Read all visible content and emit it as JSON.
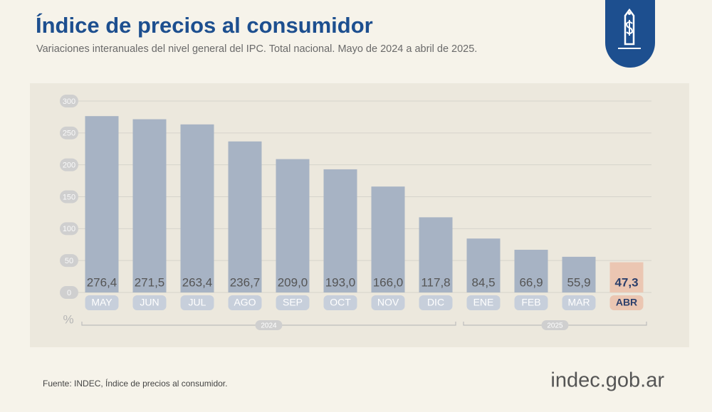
{
  "chart_data": {
    "type": "bar",
    "title": "Índice de precios al consumidor",
    "subtitle": "Variaciones interanuales del nivel general del IPC. Total nacional. Mayo de 2024 a abril de 2025.",
    "categories": [
      "MAY",
      "JUN",
      "JUL",
      "AGO",
      "SEP",
      "OCT",
      "NOV",
      "DIC",
      "ENE",
      "FEB",
      "MAR",
      "ABR"
    ],
    "values": [
      276.4,
      271.5,
      263.4,
      236.7,
      209.0,
      193.0,
      166.0,
      117.8,
      84.5,
      66.9,
      55.9,
      47.3
    ],
    "value_labels": [
      "276,4",
      "271,5",
      "263,4",
      "236,7",
      "209,0",
      "193,0",
      "166,0",
      "117,8",
      "84,5",
      "66,9",
      "55,9",
      "47,3"
    ],
    "colors": [
      "#a7b3c4",
      "#a7b3c4",
      "#a7b3c4",
      "#a7b3c4",
      "#a7b3c4",
      "#a7b3c4",
      "#a7b3c4",
      "#a7b3c4",
      "#a7b3c4",
      "#a7b3c4",
      "#a7b3c4",
      "#ebc6b2"
    ],
    "ylim": [
      0,
      300
    ],
    "yticks": [
      0,
      50,
      100,
      150,
      200,
      250,
      300
    ],
    "y_unit": "%",
    "grid": true,
    "x_groups": [
      {
        "label": "2024",
        "count": 8
      },
      {
        "label": "2025",
        "count": 4
      }
    ],
    "source": "Fuente: INDEC, Índice de precios al consumidor.",
    "logo": "indec.gob.ar"
  }
}
